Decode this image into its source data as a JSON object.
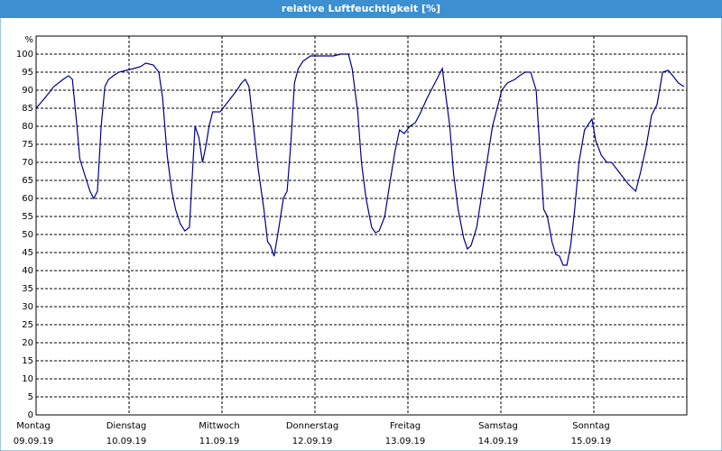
{
  "chart_data": {
    "type": "line",
    "title": "relative Luftfeuchtigkeit [%]",
    "y_unit": "%",
    "x": [
      0.0,
      0.1,
      0.19,
      0.29,
      0.35,
      0.39,
      0.44,
      0.47,
      0.53,
      0.58,
      0.62,
      0.66,
      0.7,
      0.74,
      0.78,
      0.83,
      0.89,
      0.97,
      1.05,
      1.12,
      1.18,
      1.26,
      1.32,
      1.36,
      1.41,
      1.46,
      1.5,
      1.55,
      1.6,
      1.65,
      1.71,
      1.75,
      1.79,
      1.83,
      1.86,
      1.9,
      1.98,
      2.04,
      2.1,
      2.16,
      2.21,
      2.25,
      2.29,
      2.33,
      2.39,
      2.45,
      2.49,
      2.52,
      2.56,
      2.6,
      2.66,
      2.7,
      2.74,
      2.78,
      2.82,
      2.87,
      2.95,
      3.11,
      3.2,
      3.28,
      3.36,
      3.4,
      3.46,
      3.5,
      3.55,
      3.61,
      3.65,
      3.69,
      3.75,
      3.81,
      3.86,
      3.91,
      3.96,
      4.02,
      4.08,
      4.14,
      4.21,
      4.29,
      4.37,
      4.41,
      4.45,
      4.49,
      4.54,
      4.6,
      4.64,
      4.68,
      4.74,
      4.8,
      4.85,
      4.91,
      4.97,
      5.01,
      5.07,
      5.15,
      5.2,
      5.26,
      5.32,
      5.38,
      5.42,
      5.46,
      5.5,
      5.55,
      5.59,
      5.63,
      5.67,
      5.71,
      5.75,
      5.79,
      5.84,
      5.9,
      5.98,
      6.02,
      6.08,
      6.14,
      6.19,
      6.25,
      6.31,
      6.37,
      6.45,
      6.5,
      6.56,
      6.62,
      6.68,
      6.74,
      6.8,
      6.85,
      6.91,
      6.97
    ],
    "series": [
      {
        "name": "relative Luftfeuchtigkeit",
        "color": "#00008b",
        "values": [
          85,
          88,
          91,
          93,
          94,
          93,
          80,
          71,
          66,
          62,
          60,
          62,
          80,
          91,
          93,
          94,
          95,
          95.5,
          96,
          96.5,
          97.5,
          97,
          95,
          88,
          72,
          62,
          57,
          53,
          51,
          52,
          80,
          77,
          70,
          75,
          80,
          84,
          84,
          86,
          88,
          90,
          92,
          93,
          91,
          82,
          68,
          57,
          48,
          47,
          44,
          50,
          60,
          62,
          75,
          92,
          96,
          98,
          99.5,
          99.5,
          99.5,
          100,
          100,
          96,
          84,
          70,
          60,
          52,
          50.5,
          51,
          55,
          65,
          73,
          79,
          78,
          80,
          81,
          84,
          88,
          92,
          96,
          88,
          80,
          67,
          57,
          49,
          46,
          47,
          52,
          62,
          70,
          80,
          86,
          90,
          92,
          93,
          94,
          95,
          95,
          90,
          73,
          57,
          55,
          48,
          44.5,
          44,
          41.5,
          41.5,
          47,
          56,
          70,
          79,
          82,
          76,
          72,
          70,
          70,
          68,
          66,
          64,
          62,
          67,
          74,
          83,
          86,
          95,
          95.5,
          94,
          92,
          91
        ]
      }
    ],
    "xlim": [
      0,
      7
    ],
    "xticks": [
      {
        "value": 0,
        "label": [
          "Montag",
          "09.09.19"
        ]
      },
      {
        "value": 1,
        "label": [
          "Dienstag",
          "10.09.19"
        ]
      },
      {
        "value": 2,
        "label": [
          "Mittwoch",
          "11.09.19"
        ]
      },
      {
        "value": 3,
        "label": [
          "Donnerstag",
          "12.09.19"
        ]
      },
      {
        "value": 4,
        "label": [
          "Freitag",
          "13.09.19"
        ]
      },
      {
        "value": 5,
        "label": [
          "Samstag",
          "14.09.19"
        ]
      },
      {
        "value": 6,
        "label": [
          "Sonntag",
          "15.09.19"
        ]
      }
    ],
    "ylim": [
      0,
      105
    ],
    "yticks": [
      0,
      5,
      10,
      15,
      20,
      25,
      30,
      35,
      40,
      45,
      50,
      55,
      60,
      65,
      70,
      75,
      80,
      85,
      90,
      95,
      100
    ],
    "grid": true
  }
}
